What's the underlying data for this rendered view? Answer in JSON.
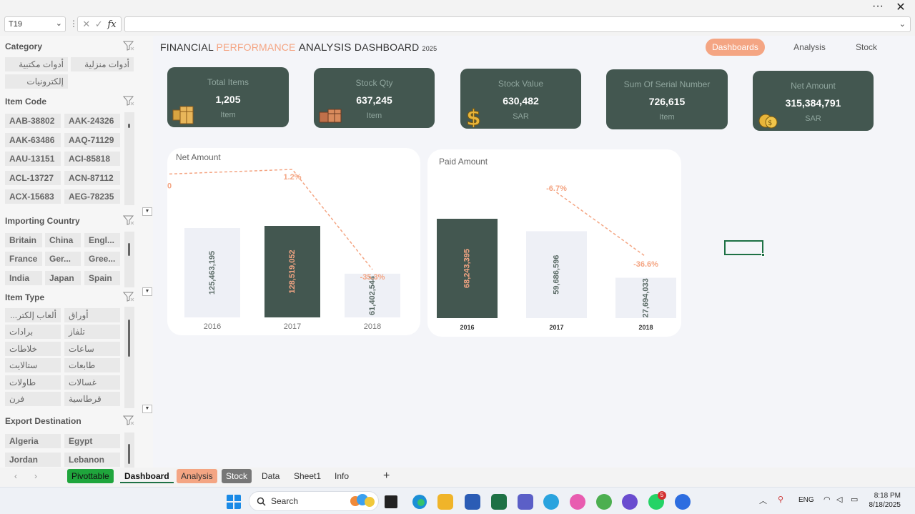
{
  "window": {
    "menu_label": "···",
    "close_label": "✕"
  },
  "formula_bar": {
    "name_box": "T19",
    "fx_label": "fx",
    "cancel_label": "✕",
    "enter_label": "✓",
    "value": ""
  },
  "slicers": {
    "category": {
      "title": "Category",
      "items": [
        "أدوات مكتبية",
        "أدوات منزلية",
        "إلكترونيات"
      ]
    },
    "item_code": {
      "title": "Item Code",
      "items": [
        "AAB-38802",
        "AAK-24326",
        "AAK-63486",
        "AAQ-71129",
        "AAU-13151",
        "ACI-85818",
        "ACL-13727",
        "ACN-87112",
        "ACX-15683",
        "AEG-78235"
      ]
    },
    "importing_country": {
      "title": "Importing Country",
      "items": [
        "Britain",
        "China",
        "Engl...",
        "France",
        "Ger...",
        "Gree...",
        "India",
        "Japan",
        "Spain"
      ]
    },
    "item_type": {
      "title": "Item Type",
      "items": [
        "ألعاب إلكتر...",
        "أوراق",
        "برادات",
        "تلفاز",
        "خلاطات",
        "ساعات",
        "ستالايت",
        "طابعات",
        "طاولات",
        "غسالات",
        "فرن",
        "قرطاسية"
      ]
    },
    "export_destination": {
      "title": "Export Destination",
      "items": [
        "Algeria",
        "Egypt",
        "Jordan",
        "Lebanon"
      ]
    }
  },
  "dashboard": {
    "title_part1": "FINANCIAL ",
    "title_part2": "PERFORMANCE ",
    "title_part3": "ANALYSIS ",
    "title_part4": "DASHBOARD ",
    "title_year": "2025",
    "nav": [
      "Dashboards",
      "Analysis",
      "Stock"
    ],
    "kpis": [
      {
        "label": "Total Items",
        "value": "1,205",
        "unit": "Item",
        "icon": "boxes-icon"
      },
      {
        "label": "Stock Qty",
        "value": "637,245",
        "unit": "Item",
        "icon": "package-icon"
      },
      {
        "label": "Stock  Value",
        "value": "630,482",
        "unit": "SAR",
        "icon": "dollar-icon"
      },
      {
        "label": "Sum Of Serial Number",
        "value": "726,615",
        "unit": "Item",
        "icon": ""
      },
      {
        "label": "Net Amount",
        "value": "315,384,791",
        "unit": "SAR",
        "icon": "coins-icon"
      }
    ],
    "accent": "#f4a583",
    "dark": "#435750",
    "light_bar": "#eef0f6"
  },
  "chart_data": [
    {
      "type": "bar",
      "title": "Net Amount",
      "categories": [
        "2016",
        "2017",
        "2018"
      ],
      "values": [
        125463195,
        128519052,
        61402544
      ],
      "value_labels": [
        "125,463,195",
        "128,519,052",
        "61,402,544"
      ],
      "change_labels": [
        "0",
        "1.2%",
        "-35.3%"
      ],
      "highlight_index": 1
    },
    {
      "type": "bar",
      "title": "Paid Amount",
      "categories": [
        "2016",
        "2017",
        "2018"
      ],
      "values": [
        68243395,
        59686596,
        27694033
      ],
      "value_labels": [
        "68,243,395",
        "59,686,596",
        "27,694,033"
      ],
      "change_labels": [
        "",
        "-6.7%",
        "-36.6%"
      ],
      "highlight_index": 0
    }
  ],
  "sheet_tabs": [
    {
      "label": "Pivottable",
      "bg": "#1fa53c",
      "fg": "#111"
    },
    {
      "label": "Dashboard",
      "bg": "",
      "fg": "#111"
    },
    {
      "label": "Analysis",
      "bg": "#f4a583",
      "fg": "#333"
    },
    {
      "label": "Stock",
      "bg": "#777777",
      "fg": "#fff"
    },
    {
      "label": "Data",
      "bg": "",
      "fg": "#333"
    },
    {
      "label": "Sheet1",
      "bg": "",
      "fg": "#333"
    },
    {
      "label": "Info",
      "bg": "",
      "fg": "#333"
    }
  ],
  "add_sheet_label": "+",
  "taskbar": {
    "search_label": "Search",
    "lang": "ENG",
    "time": "8:18 PM",
    "date": "8/18/2025",
    "whatsapp_badge": "5"
  }
}
